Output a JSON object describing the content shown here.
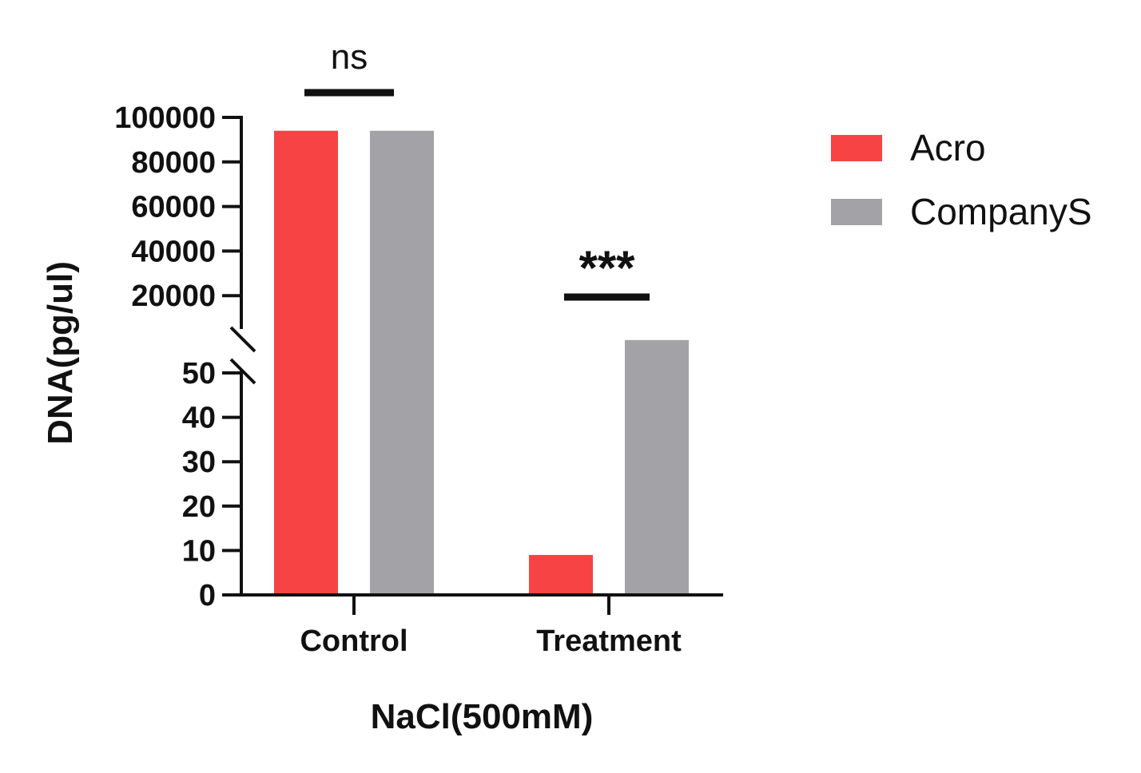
{
  "chart_data": {
    "type": "bar",
    "xlabel": "NaCl(500mM)",
    "ylabel": "DNA(pg/ul)",
    "categories": [
      "Control",
      "Treatment"
    ],
    "series": [
      {
        "name": "Acro",
        "color": "#f74343",
        "values": [
          94000,
          9
        ]
      },
      {
        "name": "CompanyS",
        "color": "#a3a2a7",
        "values": [
          94000,
          58
        ]
      }
    ],
    "y_axis": {
      "broken": true,
      "lower_segment": {
        "range": [
          0,
          50
        ],
        "ticks": [
          0,
          10,
          20,
          30,
          40,
          50
        ]
      },
      "upper_segment": {
        "range": [
          0,
          100000
        ],
        "ticks": [
          20000,
          40000,
          60000,
          80000,
          100000
        ]
      }
    },
    "annotations": [
      {
        "category": "Control",
        "text": "ns"
      },
      {
        "category": "Treatment",
        "text": "***"
      }
    ],
    "legend_position": "top-right",
    "grid": false
  }
}
